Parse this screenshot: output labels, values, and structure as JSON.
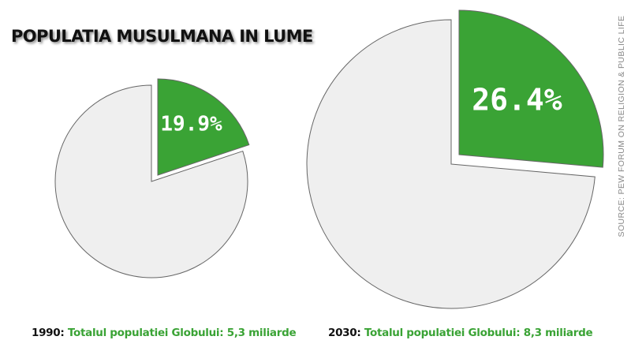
{
  "title": "POPULATIA MUSULMANA IN LUME",
  "source": "SOURCE: PEW FORUM ON RELIGION & PUBLIC LIFE",
  "colors": {
    "highlight": "#3aa335",
    "rest": "#efefef",
    "outline": "#666666"
  },
  "chart_data": [
    {
      "type": "pie",
      "year": "1990",
      "caption_year": "1990:",
      "caption_text": "Totalul populatiei Globului: 5,3 miliarde",
      "slices": [
        {
          "value": 19.9,
          "label": "19.9%",
          "exploded": true
        },
        {
          "value": 80.1,
          "label": "",
          "exploded": false
        }
      ]
    },
    {
      "type": "pie",
      "year": "2030",
      "caption_year": "2030:",
      "caption_text": "Totalul populatiei Globului: 8,3 miliarde",
      "slices": [
        {
          "value": 26.4,
          "label": "26.4%",
          "exploded": true
        },
        {
          "value": 73.6,
          "label": "",
          "exploded": false
        }
      ]
    }
  ]
}
